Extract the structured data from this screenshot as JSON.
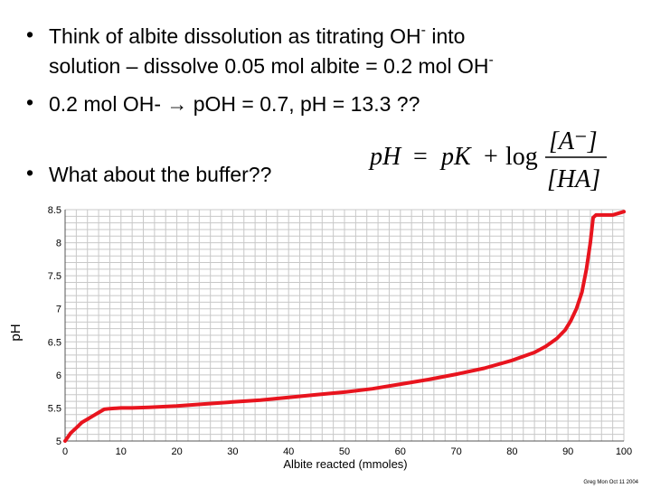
{
  "bullets": {
    "b1_line1_pre": "Think of albite dissolution as titrating OH",
    "b1_line1_sup": "-",
    "b1_line1_post": " into",
    "b1_line2_pre": "solution – dissolve 0.05 mol albite = 0.2 mol OH",
    "b1_line2_sup": "-",
    "b2": "0.2 mol OH-  → pOH = 0.7, pH = 13.3  ??",
    "b3": "What about the buffer??",
    "bullet_char": "•"
  },
  "equation": {
    "lhs": "pH",
    "eq": "=",
    "pK": "pK",
    "plus": "+",
    "log": "log",
    "num": "[A⁻]",
    "den": "[HA]"
  },
  "chart_data": {
    "type": "line",
    "xlabel": "Albite reacted (mmoles)",
    "ylabel": "pH",
    "xlim": [
      0,
      100
    ],
    "ylim": [
      5,
      8.5
    ],
    "xticks": [
      0,
      10,
      20,
      30,
      40,
      50,
      60,
      70,
      80,
      90,
      100
    ],
    "yticks": [
      5,
      5.5,
      6,
      6.5,
      7,
      7.5,
      8,
      8.5
    ],
    "grid": true,
    "credit": "Greg Mon Oct 11 2004",
    "colors": {
      "line": "#e8141e",
      "grid": "#c8c8c8",
      "axis": "#555555"
    },
    "series": [
      {
        "x": [
          0,
          1,
          2,
          3,
          4,
          5,
          6,
          7,
          8,
          10,
          12,
          15,
          20,
          25,
          30,
          35,
          40,
          45,
          50,
          55,
          60,
          65,
          70,
          75,
          80,
          84,
          86,
          88,
          89.5,
          90.5,
          91.5,
          92.5,
          93.3,
          94,
          94.5,
          95,
          96,
          98,
          100
        ],
        "y": [
          5.0,
          5.12,
          5.2,
          5.28,
          5.33,
          5.38,
          5.43,
          5.48,
          5.49,
          5.5,
          5.5,
          5.51,
          5.53,
          5.56,
          5.59,
          5.62,
          5.66,
          5.7,
          5.74,
          5.79,
          5.86,
          5.93,
          6.01,
          6.1,
          6.22,
          6.34,
          6.43,
          6.55,
          6.68,
          6.82,
          7.0,
          7.25,
          7.6,
          8.0,
          8.38,
          8.42,
          8.42,
          8.42,
          8.47
        ]
      }
    ]
  }
}
